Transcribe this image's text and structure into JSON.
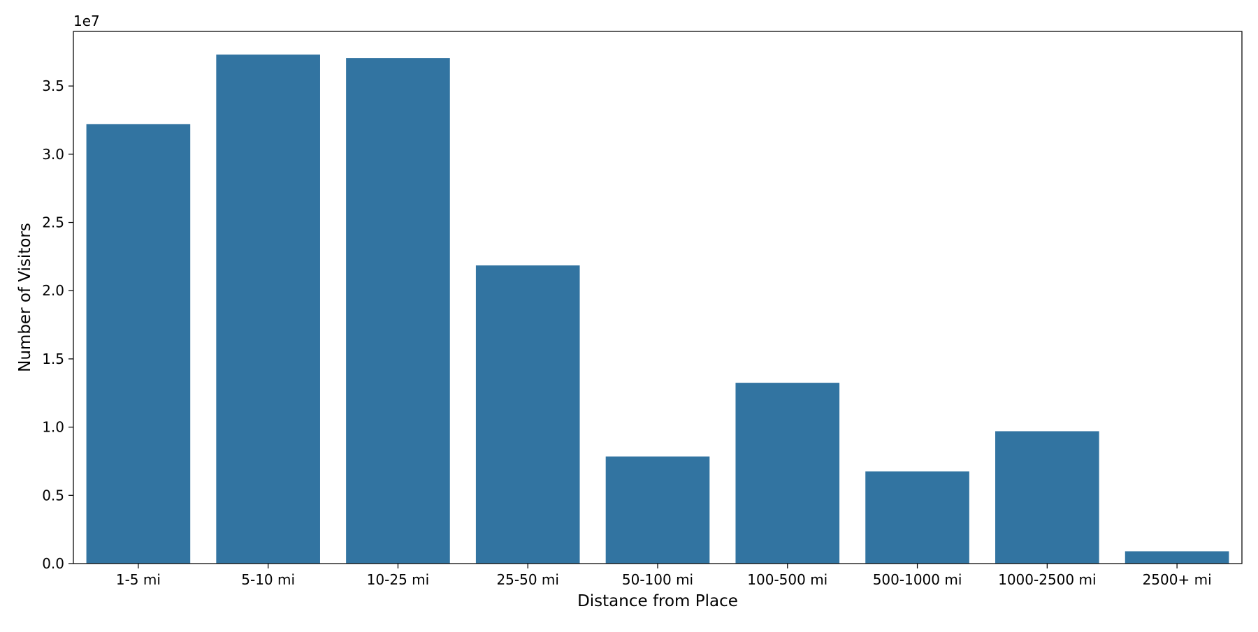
{
  "chart_data": {
    "type": "bar",
    "title": "",
    "xlabel": "Distance from Place",
    "ylabel": "Number of Visitors",
    "y_offset_label": "1e7",
    "y_scale": 10000000,
    "ylim": [
      0,
      39000000
    ],
    "yticks": [
      0,
      5000000,
      10000000,
      15000000,
      20000000,
      25000000,
      30000000,
      35000000
    ],
    "ytick_labels": [
      "0.0",
      "0.5",
      "1.0",
      "1.5",
      "2.0",
      "2.5",
      "3.0",
      "3.5"
    ],
    "categories": [
      "1-5 mi",
      "5-10 mi",
      "10-25 mi",
      "25-50 mi",
      "50-100 mi",
      "100-500 mi",
      "500-1000 mi",
      "1000-2500 mi",
      "2500+ mi"
    ],
    "values": [
      32200000,
      37300000,
      37050000,
      21850000,
      7850000,
      13250000,
      6750000,
      9700000,
      900000
    ],
    "bar_color": "#3274a1",
    "grid": false,
    "legend": "none"
  }
}
